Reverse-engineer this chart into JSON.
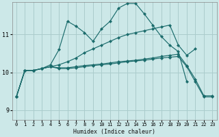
{
  "xlabel": "Humidex (Indice chaleur)",
  "bg_color": "#cce8e8",
  "grid_color": "#aacccc",
  "line_color": "#1a6b6b",
  "xlim": [
    -0.5,
    23.5
  ],
  "ylim": [
    8.75,
    11.85
  ],
  "yticks": [
    9,
    10,
    11
  ],
  "xticks": [
    0,
    1,
    2,
    3,
    4,
    5,
    6,
    7,
    8,
    9,
    10,
    11,
    12,
    13,
    14,
    15,
    16,
    17,
    18,
    19,
    20,
    21,
    22,
    23
  ],
  "series": [
    {
      "x": [
        0,
        1,
        2,
        3,
        4,
        5,
        6,
        7,
        8,
        9,
        10,
        11,
        12,
        13,
        14,
        15,
        16,
        17,
        18,
        19,
        20
      ],
      "y": [
        9.35,
        10.05,
        10.05,
        10.1,
        10.2,
        10.6,
        11.35,
        11.22,
        11.05,
        10.82,
        11.15,
        11.35,
        11.7,
        11.82,
        11.82,
        11.55,
        11.25,
        10.95,
        10.72,
        10.55,
        9.75
      ]
    },
    {
      "x": [
        0,
        1,
        2,
        3,
        4,
        5,
        6,
        7,
        8,
        9,
        10,
        11,
        12,
        13,
        14,
        15,
        16,
        17,
        18,
        19,
        20,
        21
      ],
      "y": [
        9.35,
        10.05,
        10.05,
        10.1,
        10.15,
        10.2,
        10.28,
        10.38,
        10.52,
        10.62,
        10.72,
        10.82,
        10.92,
        11.0,
        11.05,
        11.1,
        11.15,
        11.2,
        11.25,
        10.72,
        10.45,
        10.62
      ]
    },
    {
      "x": [
        0,
        1,
        2,
        3,
        4,
        5,
        6,
        7,
        8,
        9,
        10,
        11,
        12,
        13,
        14,
        15,
        16,
        17,
        18,
        19,
        20,
        21,
        22,
        23
      ],
      "y": [
        9.35,
        10.05,
        10.05,
        10.1,
        10.15,
        10.12,
        10.12,
        10.15,
        10.18,
        10.2,
        10.22,
        10.25,
        10.28,
        10.3,
        10.32,
        10.35,
        10.38,
        10.42,
        10.45,
        10.48,
        10.18,
        9.82,
        9.38,
        9.38
      ]
    },
    {
      "x": [
        0,
        1,
        2,
        3,
        4,
        5,
        6,
        7,
        8,
        9,
        10,
        11,
        12,
        13,
        14,
        15,
        16,
        17,
        18,
        19,
        20,
        21,
        22,
        23
      ],
      "y": [
        9.35,
        10.05,
        10.05,
        10.1,
        10.15,
        10.1,
        10.1,
        10.12,
        10.15,
        10.18,
        10.2,
        10.22,
        10.25,
        10.28,
        10.3,
        10.32,
        10.35,
        10.38,
        10.4,
        10.42,
        10.15,
        9.75,
        9.35,
        9.35
      ]
    }
  ]
}
